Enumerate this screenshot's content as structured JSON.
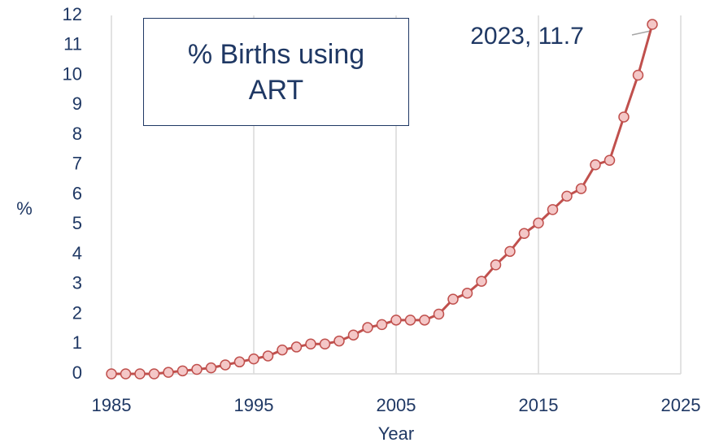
{
  "chart_data": {
    "type": "line",
    "title": "% Births using ART",
    "x_label": "Year",
    "y_label": "%",
    "x": [
      1985,
      1986,
      1987,
      1988,
      1989,
      1990,
      1991,
      1992,
      1993,
      1994,
      1995,
      1996,
      1997,
      1998,
      1999,
      2000,
      2001,
      2002,
      2003,
      2004,
      2005,
      2006,
      2007,
      2008,
      2009,
      2010,
      2011,
      2012,
      2013,
      2014,
      2015,
      2016,
      2017,
      2018,
      2019,
      2020,
      2021,
      2022,
      2023
    ],
    "values": [
      0,
      0,
      0,
      0,
      0.05,
      0.1,
      0.15,
      0.2,
      0.3,
      0.4,
      0.5,
      0.6,
      0.8,
      0.9,
      1.0,
      1.0,
      1.1,
      1.3,
      1.55,
      1.65,
      1.8,
      1.8,
      1.8,
      2.0,
      2.5,
      2.7,
      3.1,
      3.65,
      4.1,
      4.7,
      5.05,
      5.5,
      5.95,
      6.2,
      7.0,
      7.15,
      8.6,
      10.0,
      11.7
    ],
    "color": "#c0504d",
    "marker_fill": "#f4c7c7",
    "xlim": [
      1985,
      2025
    ],
    "xticks": [
      1985,
      1995,
      2005,
      2015,
      2025
    ],
    "ylim": [
      0,
      12
    ],
    "yticks": [
      0,
      1,
      2,
      3,
      4,
      5,
      6,
      7,
      8,
      9,
      10,
      11,
      12
    ],
    "grid": "x",
    "annotations": [
      "2023, 11.7"
    ]
  }
}
